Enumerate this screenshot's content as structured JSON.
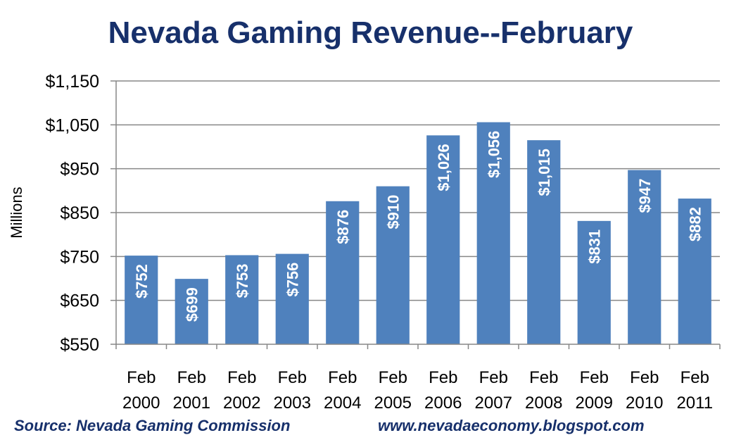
{
  "chart_data": {
    "type": "bar",
    "title": "Nevada Gaming Revenue--February",
    "ylabel": "Millions",
    "xlabel": "",
    "categories": [
      [
        "Feb",
        "2000"
      ],
      [
        "Feb",
        "2001"
      ],
      [
        "Feb",
        "2002"
      ],
      [
        "Feb",
        "2003"
      ],
      [
        "Feb",
        "2004"
      ],
      [
        "Feb",
        "2005"
      ],
      [
        "Feb",
        "2006"
      ],
      [
        "Feb",
        "2007"
      ],
      [
        "Feb",
        "2008"
      ],
      [
        "Feb",
        "2009"
      ],
      [
        "Feb",
        "2010"
      ],
      [
        "Feb",
        "2011"
      ]
    ],
    "values": [
      752,
      699,
      753,
      756,
      876,
      910,
      1026,
      1056,
      1015,
      831,
      947,
      882
    ],
    "value_labels": [
      "$752",
      "$699",
      "$753",
      "$756",
      "$876",
      "$910",
      "$1,026",
      "$1,056",
      "$1,015",
      "$831",
      "$947",
      "$882"
    ],
    "ylim": [
      550,
      1150
    ],
    "yticks": [
      550,
      650,
      750,
      850,
      950,
      1050,
      1150
    ],
    "ytick_labels": [
      "$550",
      "$650",
      "$750",
      "$850",
      "$950",
      "$1,050",
      "$1,150"
    ],
    "grid": true,
    "bar_color": "#4f81bd",
    "legend": "none"
  },
  "footer": {
    "source": "Source: Nevada Gaming Commission",
    "url": "www.nevadaeconomy.blogspot.com"
  },
  "colors": {
    "title": "#17306b",
    "bar": "#4f81bd",
    "gridline": "#878787",
    "axis_text": "#000000",
    "data_label": "#ffffff"
  }
}
